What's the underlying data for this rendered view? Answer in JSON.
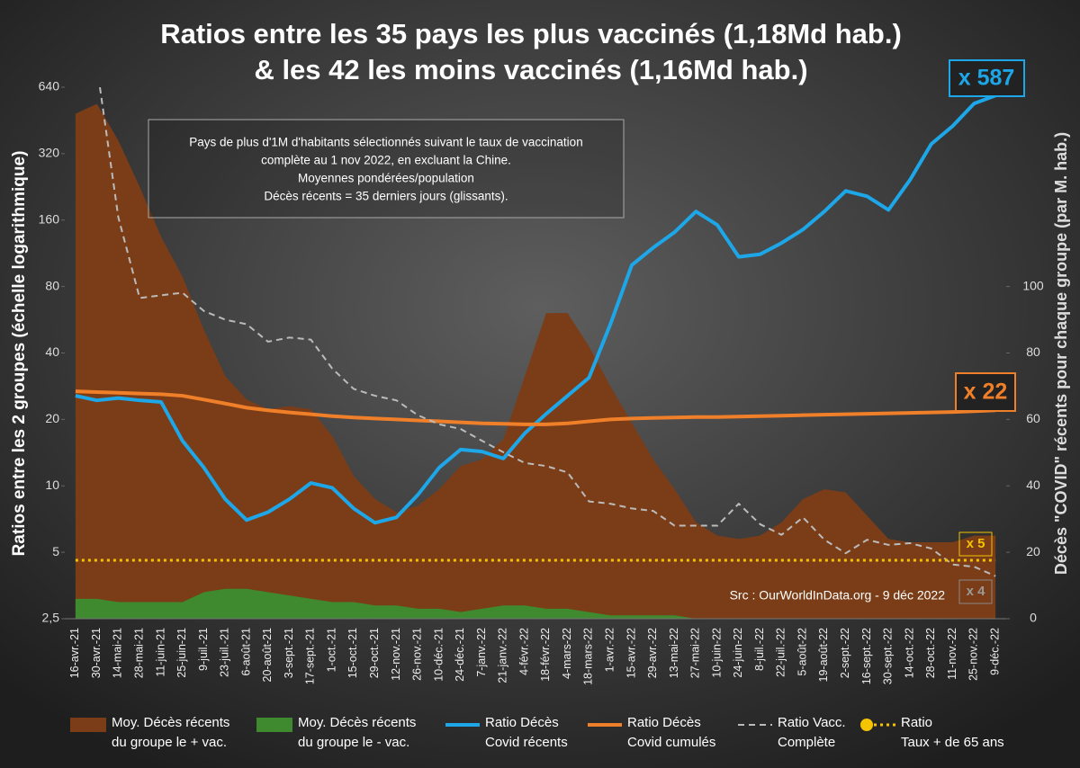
{
  "chart_data": {
    "type": "line",
    "title_lines": [
      "Ratios entre les 35 pays les plus vaccinés (1,18Md hab.)",
      "& les 42 les moins vaccinés (1,16Md hab.)"
    ],
    "y_label": "Ratios entre les 2 groupes (échelle logarithmique)",
    "y2_label": "Décès \"COVID\" récents pour chaque groupe (par M. hab.)",
    "note_lines": [
      "Pays de plus d'1M d'habitants sélectionnés suivant le taux de vaccination",
      "complète au 1 nov 2022, en excluant la Chine.",
      "Moyennes pondérées/population",
      "Décès récents = 35 derniers jours (glissants)."
    ],
    "source": "Src : OurWorldInData.org - 9 déc 2022",
    "annotations": [
      "x 587",
      "x 22",
      "x 5",
      "x 4"
    ],
    "categories": [
      "16-avr.-21",
      "30-avr.-21",
      "14-mai-21",
      "28-mai-21",
      "11-juin-21",
      "25-juin-21",
      "9-juil.-21",
      "23-juil.-21",
      "6-août-21",
      "20-août-21",
      "3-sept.-21",
      "17-sept.-21",
      "1-oct.-21",
      "15-oct.-21",
      "29-oct.-21",
      "12-nov.-21",
      "26-nov.-21",
      "10-déc.-21",
      "24-déc.-21",
      "7-janv.-22",
      "21-janv.-22",
      "4-févr.-22",
      "18-févr.-22",
      "4-mars-22",
      "18-mars-22",
      "1-avr.-22",
      "15-avr.-22",
      "29-avr.-22",
      "13-mai-22",
      "27-mai-22",
      "10-juin-22",
      "24-juin-22",
      "8-juil.-22",
      "22-juil.-22",
      "5-août-22",
      "19-août-22",
      "2-sept.-22",
      "16-sept.-22",
      "30-sept.-22",
      "14-oct.-22",
      "28-oct.-22",
      "11-nov.-22",
      "25-nov.-22",
      "9-déc.-22"
    ],
    "log_y": true,
    "ylim": [
      2.5,
      640
    ],
    "yticks": [
      {
        "value": 2.5,
        "label": "2,5"
      },
      5,
      10,
      20,
      40,
      80,
      160,
      320,
      640
    ],
    "y2lim": [
      0,
      160
    ],
    "y2ticks": [
      0,
      20,
      40,
      60,
      80,
      100
    ],
    "series": [
      {
        "name": "Moy. Décès récents\ndu groupe le + vac.",
        "type": "area",
        "axis": "y2",
        "color": "#7b3d17",
        "values": [
          152,
          155,
          144,
          130,
          115,
          103,
          87,
          73,
          66,
          63,
          64,
          63,
          55,
          43,
          36,
          32,
          34,
          39,
          46,
          48,
          54,
          73,
          92,
          92,
          82,
          70,
          59,
          48,
          39,
          29,
          25,
          24,
          25,
          29,
          36,
          39,
          38,
          31,
          24,
          23,
          23,
          23,
          25,
          25
        ]
      },
      {
        "name": "Moy. Décès récents\ndu groupe le - vac.",
        "type": "area",
        "axis": "y2",
        "color": "#3f8a2e",
        "values": [
          6,
          6,
          5,
          5,
          5,
          5,
          8,
          9,
          9,
          8,
          7,
          6,
          5,
          5,
          4,
          4,
          3,
          3,
          2,
          3,
          4,
          4,
          3,
          3,
          2,
          1,
          1,
          1,
          1,
          0,
          0,
          0,
          0,
          0,
          0,
          0,
          0,
          0,
          0,
          0,
          0,
          0,
          0,
          0
        ]
      },
      {
        "name": "Ratio Décès\nCovid récents",
        "type": "line",
        "color": "#1ea7e8",
        "width": 4,
        "values": [
          25.6,
          24.4,
          25,
          24.4,
          24,
          16,
          12.1,
          8.7,
          7,
          7.6,
          8.7,
          10.3,
          9.8,
          7.9,
          6.8,
          7.2,
          9.1,
          12.1,
          14.6,
          14.3,
          13.3,
          17.3,
          21.2,
          25.6,
          30.9,
          54,
          100,
          120,
          141,
          175,
          152,
          109,
          112,
          126,
          145,
          175,
          217,
          205,
          178,
          243,
          354,
          427,
          540,
          587
        ]
      },
      {
        "name": "Ratio Décès\nCovid cumulés",
        "type": "line",
        "color": "#f07f2a",
        "width": 4,
        "values": [
          26.8,
          26.6,
          26.4,
          26.2,
          26,
          25.6,
          24.6,
          23.6,
          22.6,
          22,
          21.5,
          21.1,
          20.7,
          20.4,
          20.2,
          20,
          19.8,
          19.6,
          19.4,
          19.2,
          19.1,
          19,
          19,
          19.2,
          19.6,
          20,
          20.2,
          20.3,
          20.4,
          20.5,
          20.5,
          20.6,
          20.7,
          20.8,
          20.9,
          21,
          21.1,
          21.2,
          21.3,
          21.4,
          21.5,
          21.6,
          21.8,
          22
        ]
      },
      {
        "name": "Ratio Vacc.\nComplète",
        "type": "line",
        "color": "#bbbbbb",
        "width": 2,
        "dash": "dashed",
        "values": [
          null,
          800,
          165,
          71,
          73,
          75,
          62,
          56.6,
          54,
          45,
          47,
          46,
          34,
          27.5,
          25.6,
          24.4,
          20.9,
          19,
          18.1,
          16,
          14.2,
          12.7,
          12.3,
          11.5,
          8.5,
          8.3,
          7.9,
          7.7,
          6.6,
          6.6,
          6.6,
          8.3,
          6.7,
          6,
          7.2,
          5.7,
          4.95,
          5.7,
          5.4,
          5.5,
          5.2,
          4.4,
          4.3,
          3.9
        ]
      },
      {
        "name": "Ratio\nTaux + de 65 ans",
        "type": "line",
        "color": "#f5c400",
        "width": 3,
        "dash": "dotted",
        "values": [
          4.6,
          4.6,
          4.6,
          4.6,
          4.6,
          4.6,
          4.6,
          4.6,
          4.6,
          4.6,
          4.6,
          4.6,
          4.6,
          4.6,
          4.6,
          4.6,
          4.6,
          4.6,
          4.6,
          4.6,
          4.6,
          4.6,
          4.6,
          4.6,
          4.6,
          4.6,
          4.6,
          4.6,
          4.6,
          4.6,
          4.6,
          4.6,
          4.6,
          4.6,
          4.6,
          4.6,
          4.6,
          4.6,
          4.6,
          4.6,
          4.6,
          4.6,
          4.6,
          4.6
        ]
      }
    ]
  }
}
